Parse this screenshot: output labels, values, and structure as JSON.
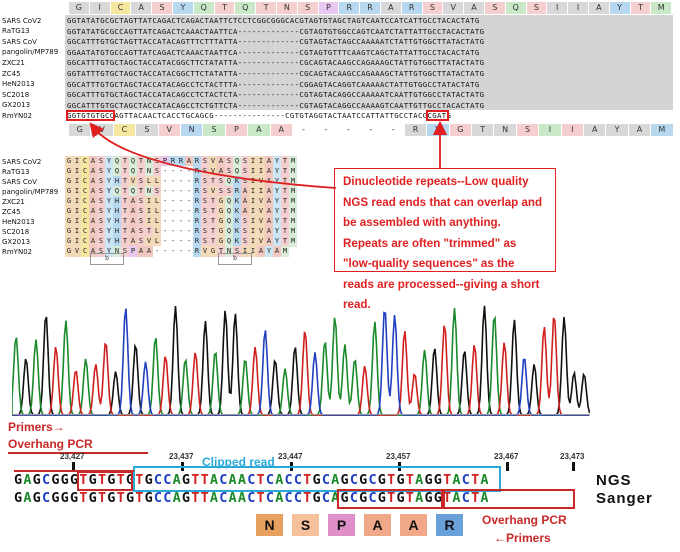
{
  "top_alignment": {
    "aa_header": [
      "G",
      "I",
      "C",
      "A",
      "S",
      "Y",
      "Q",
      "T",
      "Q",
      "T",
      "N",
      "S",
      "P",
      "R",
      "R",
      "A",
      "R",
      "S",
      "V",
      "A",
      "S",
      "Q",
      "S",
      "I",
      "I",
      "A",
      "Y",
      "T",
      "M"
    ],
    "aa_header_colors": [
      "#d8d8d8",
      "#d8d8d8",
      "#f5e6a0",
      "#d8d8d8",
      "#f5cfcf",
      "#b8d8f0",
      "#c8e8c8",
      "#f5cfcf",
      "#c8e8c8",
      "#f5cfcf",
      "#f5cfcf",
      "#f5cfcf",
      "#e8c8f0",
      "#b8d8f0",
      "#b8d8f0",
      "#d8d8d8",
      "#b8d8f0",
      "#f5cfcf",
      "#d8d8d8",
      "#d8d8d8",
      "#f5cfcf",
      "#c8e8c8",
      "#f5cfcf",
      "#d8d8d8",
      "#d8d8d8",
      "#d8d8d8",
      "#b8d8f0",
      "#f5cfcf",
      "#c8e8c8"
    ],
    "rows": [
      {
        "name": "SARS CoV2",
        "seq": "GGTATATGCGCTAGTTATCAGACTCAGACTAATTCTCCTCGGCGGGCACGTAGTGTAGCTAGTCAATCCATCATTGCCTACACTATG"
      },
      {
        "name": "RaTG13",
        "seq": "GGTATATGCGCCAGTTATCAGACTCAAACTAATTCA-------------CGTAGTGTGGCCAGTCAATCTATTATTGCCTACACTATG"
      },
      {
        "name": "SARS CoV",
        "seq": "GGCATTTGTGCTAGTTACCATACAGTTTCTTTATTA-------------CGTAGTACTAGCCAAAAATCTATTGTGGCTTATACTATG"
      },
      {
        "name": "pangolin/MP789",
        "seq": "GGAATATGTGCCAGTTATCAGACTCAAACTAATTCA-------------CGTAGTGTTTCAAGTCAGCTATTATTGCCTACACTATG"
      },
      {
        "name": "ZXC21",
        "seq": "GGCATTTGTGCTAGCTACCATACGGCTTCTATATTA-------------CGCAGTACAAGCCAGAAAGCTATTGTGGCTTATACTATG"
      },
      {
        "name": "ZC45",
        "seq": "GGTATTTGTGCTAGCTACCATACGGCTTCTATATTA-------------CGCAGTACAAGCCAGAAAGCTATTGTGGCTTATACTATG"
      },
      {
        "name": "HeN2013",
        "seq": "GGCATTTGTGCTAGCTACCATACAGCCTCTACTTTA-------------CGGAGTACAGGTCAAAAACTATTGTGGCCTATACTATG"
      },
      {
        "name": "SC2018",
        "seq": "GGCATTTGTGCTAGCTACCATACAGCCTCTACTCTA-------------CGTAGTACAGGCCAAAAATCAATTGTGGCCTATACTATG"
      },
      {
        "name": "GX2013",
        "seq": "GGCATTTGTGCTAGCTACCATACAGCCTCTGTTCTA-------------CGTAGTACAGGCCAAAAGTCAATTGTTGCCTACACTATG"
      },
      {
        "name": "RmYN02",
        "seq": "GGTGTGTGCCAGTTACAACTCACCTGCAGCG---------------CGTGTAGGTACTAATCCATTATTGCCTACGCGATG"
      }
    ],
    "bottom_aa": [
      "G",
      "V",
      "C",
      "S",
      "V",
      "N",
      "S",
      "P",
      "A",
      "A",
      "-",
      "-",
      "-",
      "-",
      "-",
      "R",
      "V",
      "G",
      "T",
      "N",
      "S",
      "I",
      "I",
      "A",
      "Y",
      "A",
      "M"
    ]
  },
  "protein_alignment": {
    "rows": [
      {
        "name": "SARS CoV2",
        "seq": "GICASYQTQTNSPRRARSVASQSIIAYTM"
      },
      {
        "name": "RaTG13",
        "seq": "GICASYQTQTNS----RSVASQSIIAYTM"
      },
      {
        "name": "SARS CoV",
        "seq": "GICASYHTVSLL----RSTSQKSIVAYTM"
      },
      {
        "name": "pangolin/MP789",
        "seq": "GICASYQTQTNS----RSVSSRAIIAYTM"
      },
      {
        "name": "ZXC21",
        "seq": "GICASYHTASIL----RSTGQKAIVAYTM"
      },
      {
        "name": "ZC45",
        "seq": "GICASYHTASIL----RSTGQKAIVAYTM"
      },
      {
        "name": "HeN2013",
        "seq": "GICASYHTASIL----RSTGQKSIVAYTM"
      },
      {
        "name": "SC2018",
        "seq": "GICASYHTASTL----RSTGQKSIVAYTM"
      },
      {
        "name": "GX2013",
        "seq": "GICASYHTASVL----RSTGQKSIVAYTM"
      },
      {
        "name": "RmYN02",
        "seq": "GVCASYNSPAA-----RVGTNSIIAYAM"
      }
    ],
    "box_label_1": "b",
    "box_label_2": "b"
  },
  "callout": {
    "text": "Dinucleotide repeats--Low quality NGS read ends that can overlap and be assembled with anything. Repeats are often \"trimmed\" as \"low-quality sequences\" as the reads are processed--giving a short read."
  },
  "trace_labels": {
    "primers_left": "Primers→",
    "overhang_left": "Overhang PCR",
    "clipped_read": "Clipped read",
    "overhang_right": "Overhang PCR",
    "primers_right": "←Primers",
    "positions": [
      "23,427",
      "23,437",
      "23,447",
      "23,457",
      "23,467",
      "23,473"
    ]
  },
  "reads": {
    "ngs_label": "NGS",
    "sanger_label": "Sanger",
    "ngs_seq": "GAGCGGGTGTGTGTGCCAGTTACAACTCACCTGCAGCGCGTGTAGGTACTA",
    "sanger_seq": "GAGCGGGTGTGTGTGCCAGTTACAACTCACCTGCAGCGCGTGTAGGTACTA"
  },
  "aa_tiles": [
    {
      "letter": "N",
      "color": "#e8a060"
    },
    {
      "letter": "S",
      "color": "#f5c09a"
    },
    {
      "letter": "P",
      "color": "#e090c8"
    },
    {
      "letter": "A",
      "color": "#f0a888"
    },
    {
      "letter": "A",
      "color": "#f0a888"
    },
    {
      "letter": "R",
      "color": "#6aa0d8"
    }
  ]
}
